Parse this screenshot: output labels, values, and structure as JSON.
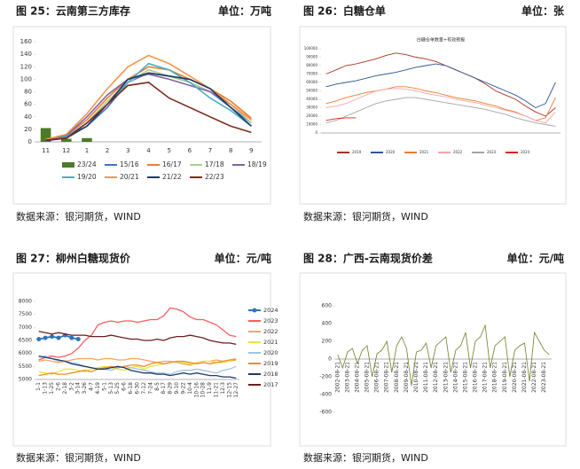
{
  "panels": [
    {
      "title": "图 25：云南第三方库存",
      "unit": "单位：万吨",
      "source": "数据来源：银河期货，WIND"
    },
    {
      "title": "图 26：白糖仓单",
      "unit": "单位：张",
      "source": "数据来源：银河期货，WIND"
    },
    {
      "title": "图 27：柳州白糖现货价",
      "unit": "单位：元/吨",
      "source": "数据来源：银河期货，WIND"
    },
    {
      "title": "图 28：广西-云南现货价差",
      "unit": "单位：元/吨",
      "source": "数据来源：银河期货，WIND"
    }
  ],
  "chart_data": [
    {
      "type": "line",
      "categories": [
        "11",
        "12",
        "1",
        "2",
        "3",
        "4",
        "5",
        "6",
        "7",
        "8",
        "9"
      ],
      "ylim": [
        0,
        160
      ],
      "yticks": [
        0,
        20,
        40,
        60,
        80,
        100,
        120,
        140,
        160
      ],
      "series": [
        {
          "name": "23/24",
          "type": "bar",
          "color": "#4e7a2a",
          "values": [
            22,
            5,
            6,
            null,
            null,
            null,
            null,
            null,
            null,
            null,
            null
          ]
        },
        {
          "name": "15/16",
          "color": "#4472c4",
          "values": [
            2,
            8,
            25,
            55,
            95,
            110,
            105,
            95,
            80,
            55,
            30
          ]
        },
        {
          "name": "16/17",
          "color": "#ed7d31",
          "values": [
            3,
            10,
            35,
            70,
            100,
            120,
            115,
            100,
            85,
            65,
            38
          ]
        },
        {
          "name": "17/18",
          "color": "#a9d18e",
          "values": [
            2,
            8,
            30,
            65,
            95,
            115,
            105,
            95,
            80,
            60,
            30
          ]
        },
        {
          "name": "18/19",
          "color": "#8064a2",
          "values": [
            3,
            10,
            40,
            75,
            100,
            108,
            100,
            90,
            80,
            60,
            35
          ]
        },
        {
          "name": "19/20",
          "color": "#4bacc6",
          "values": [
            2,
            8,
            30,
            60,
            95,
            125,
            115,
            95,
            70,
            50,
            25
          ]
        },
        {
          "name": "20/21",
          "color": "#f79646",
          "values": [
            4,
            12,
            45,
            85,
            120,
            138,
            125,
            105,
            85,
            60,
            35
          ]
        },
        {
          "name": "21/22",
          "color": "#1f3864",
          "values": [
            2,
            6,
            25,
            60,
            100,
            110,
            105,
            100,
            85,
            55,
            25
          ]
        },
        {
          "name": "22/23",
          "color": "#7f2a1d",
          "values": [
            3,
            6,
            30,
            60,
            90,
            95,
            70,
            55,
            40,
            25,
            15
          ]
        }
      ]
    },
    {
      "type": "line",
      "title": "白糖仓单数量+有效预报",
      "categories": [
        null,
        null,
        null,
        null,
        null,
        null,
        null,
        null,
        null,
        null,
        null,
        null,
        null,
        null,
        null,
        null,
        null,
        null,
        null,
        null,
        null,
        null,
        null,
        null
      ],
      "ylim": [
        0,
        100000
      ],
      "yticks": [
        0,
        10000,
        20000,
        30000,
        40000,
        50000,
        60000,
        70000,
        80000,
        90000,
        100000
      ],
      "series": [
        {
          "name": "2019",
          "color": "#a93226",
          "values": [
            70000,
            75000,
            80000,
            82000,
            85000,
            88000,
            92000,
            95000,
            93000,
            90000,
            88000,
            85000,
            80000,
            75000,
            70000,
            65000,
            58000,
            50000,
            45000,
            40000,
            32000,
            25000,
            20000,
            30000
          ]
        },
        {
          "name": "2020",
          "color": "#2e5597",
          "values": [
            55000,
            58000,
            60000,
            62000,
            65000,
            68000,
            70000,
            72000,
            75000,
            78000,
            80000,
            82000,
            80000,
            75000,
            70000,
            65000,
            60000,
            55000,
            50000,
            45000,
            38000,
            30000,
            35000,
            60000
          ]
        },
        {
          "name": "2021",
          "color": "#ed7d31",
          "values": [
            35000,
            38000,
            42000,
            45000,
            48000,
            50000,
            52000,
            55000,
            55000,
            53000,
            50000,
            48000,
            45000,
            42000,
            40000,
            38000,
            35000,
            32000,
            28000,
            25000,
            20000,
            15000,
            18000,
            42000
          ]
        },
        {
          "name": "2022",
          "color": "#f4a6a6",
          "values": [
            30000,
            32000,
            35000,
            40000,
            45000,
            50000,
            52000,
            53000,
            52000,
            50000,
            47000,
            45000,
            43000,
            40000,
            38000,
            36000,
            33000,
            30000,
            27000,
            24000,
            20000,
            15000,
            12000,
            25000
          ]
        },
        {
          "name": "2023",
          "color": "#a5a5a5",
          "values": [
            12000,
            15000,
            20000,
            25000,
            30000,
            35000,
            38000,
            40000,
            42000,
            42000,
            40000,
            38000,
            36000,
            34000,
            32000,
            30000,
            28000,
            25000,
            22000,
            18000,
            15000,
            12000,
            10000,
            8000
          ]
        },
        {
          "name": "2024",
          "color": "#e02020",
          "values": [
            15000,
            17000,
            18000,
            18000,
            null,
            null,
            null,
            null,
            null,
            null,
            null,
            null,
            null,
            null,
            null,
            null,
            null,
            null,
            null,
            null,
            null,
            null,
            null,
            null
          ]
        }
      ]
    },
    {
      "type": "line",
      "categories": [
        "1-1",
        "1-13",
        "1-25",
        "2-6",
        "2-18",
        "3-2",
        "3-14",
        "3-26",
        "4-7",
        "4-19",
        "5-1",
        "5-13",
        "5-25",
        "6-6",
        "6-18",
        "6-30",
        "7-12",
        "7-24",
        "8-5",
        "8-17",
        "8-29",
        "9-10",
        "9-22",
        "10-4",
        "10-16",
        "10-28",
        "11-9",
        "11-21",
        "12-3",
        "12-15",
        "12-27"
      ],
      "ylim": [
        5000,
        8000
      ],
      "yticks": [
        5000,
        5500,
        6000,
        6500,
        7000,
        7500,
        8000
      ],
      "series": [
        {
          "name": "2024",
          "color": "#2e75b6",
          "markers": true,
          "values": [
            6550,
            6600,
            6650,
            6600,
            6700,
            6600,
            6550,
            null,
            null,
            null,
            null,
            null,
            null,
            null,
            null,
            null,
            null,
            null,
            null,
            null,
            null,
            null,
            null,
            null,
            null,
            null,
            null,
            null,
            null,
            null,
            null
          ]
        },
        {
          "name": "2023",
          "color": "#ff5b5b",
          "values": [
            5750,
            5850,
            5900,
            5850,
            5900,
            6000,
            6200,
            6500,
            6700,
            7100,
            7200,
            7250,
            7200,
            7250,
            7250,
            7200,
            7250,
            7300,
            7300,
            7450,
            7750,
            7700,
            7600,
            7400,
            7300,
            7300,
            7200,
            7100,
            6900,
            6700,
            6650
          ]
        },
        {
          "name": "2022",
          "color": "#f4a460",
          "values": [
            5700,
            5750,
            5700,
            5650,
            5700,
            5750,
            5800,
            5800,
            5800,
            5750,
            5800,
            5800,
            5750,
            5750,
            5800,
            5800,
            5750,
            5700,
            5650,
            5700,
            5700,
            5650,
            5600,
            5550,
            5650,
            5700,
            5700,
            5750,
            5700,
            5750,
            5800
          ]
        },
        {
          "name": "2021",
          "color": "#e6e63c",
          "values": [
            5300,
            5250,
            5200,
            5300,
            5400,
            5400,
            5350,
            5300,
            5400,
            5450,
            5500,
            5450,
            5400,
            5350,
            5450,
            5500,
            5400,
            5500,
            5550,
            5600,
            5650,
            5700,
            5650,
            5600,
            5650,
            5700,
            5700,
            5650,
            5650,
            5700,
            5750
          ]
        },
        {
          "name": "2020",
          "color": "#9dc3e6",
          "values": [
            5850,
            5900,
            5800,
            5700,
            5700,
            5650,
            5600,
            5500,
            5450,
            5400,
            5400,
            5350,
            5450,
            5500,
            5450,
            5400,
            5350,
            5300,
            5250,
            5250,
            5200,
            5300,
            5350,
            5350,
            5400,
            5350,
            5300,
            5250,
            5350,
            5400,
            5500
          ]
        },
        {
          "name": "2019",
          "color": "#f08c28",
          "values": [
            5150,
            5200,
            5250,
            5200,
            5200,
            5250,
            5300,
            5350,
            5300,
            5400,
            5450,
            5500,
            5450,
            5500,
            5550,
            5550,
            5500,
            5600,
            5650,
            5600,
            5650,
            5700,
            5700,
            5650,
            5600,
            5650,
            5600,
            5650,
            5700,
            5750,
            5750
          ]
        },
        {
          "name": "2018",
          "color": "#1f3864",
          "values": [
            5900,
            5850,
            5800,
            5750,
            5700,
            5600,
            5550,
            5500,
            5450,
            5400,
            5400,
            5450,
            5500,
            5450,
            5350,
            5300,
            5250,
            5250,
            5200,
            5200,
            5150,
            5200,
            5250,
            5200,
            5250,
            5200,
            5150,
            5150,
            5100,
            5100,
            5050
          ]
        },
        {
          "name": "2017",
          "color": "#6b1f1f",
          "values": [
            6850,
            6800,
            6750,
            6800,
            6750,
            6700,
            6700,
            6700,
            6650,
            6650,
            6650,
            6700,
            6650,
            6600,
            6550,
            6550,
            6500,
            6500,
            6550,
            6500,
            6600,
            6650,
            6650,
            6700,
            6650,
            6600,
            6500,
            6450,
            6400,
            6400,
            6350
          ]
        }
      ]
    },
    {
      "type": "line",
      "categories": [
        "2002-08-21",
        null,
        "2003-08-21",
        null,
        "2004-08-21",
        null,
        "2005-08-21",
        null,
        "2006-08-21",
        null,
        "2007-08-21",
        null,
        "2008-08-21",
        null,
        "2009-08-21",
        null,
        "2010-08-21",
        null,
        "2011-08-21",
        null,
        "2012-08-21",
        null,
        "2013-08-21",
        null,
        "2014-08-21",
        null,
        "2015-08-21",
        null,
        "2016-08-21",
        null,
        "2017-08-21",
        null,
        "2018-08-21",
        null,
        "2019-08-21",
        null,
        "2020-08-21",
        null,
        "2021-08-21",
        null,
        "2022-08-21",
        null,
        "2023-08-21",
        null
      ],
      "ylim": [
        -600,
        600
      ],
      "yticks": [
        -600,
        -400,
        -200,
        0,
        200,
        400,
        600
      ],
      "series": [
        {
          "name": null,
          "color": "#6b7f2a",
          "values": [
            50,
            -100,
            80,
            120,
            -50,
            100,
            150,
            -200,
            60,
            100,
            200,
            -150,
            150,
            250,
            120,
            -300,
            80,
            100,
            180,
            -100,
            150,
            200,
            250,
            -150,
            100,
            150,
            300,
            -100,
            200,
            250,
            380,
            -100,
            150,
            200,
            250,
            -200,
            100,
            150,
            180,
            -250,
            300,
            200,
            100,
            50
          ]
        }
      ]
    }
  ]
}
